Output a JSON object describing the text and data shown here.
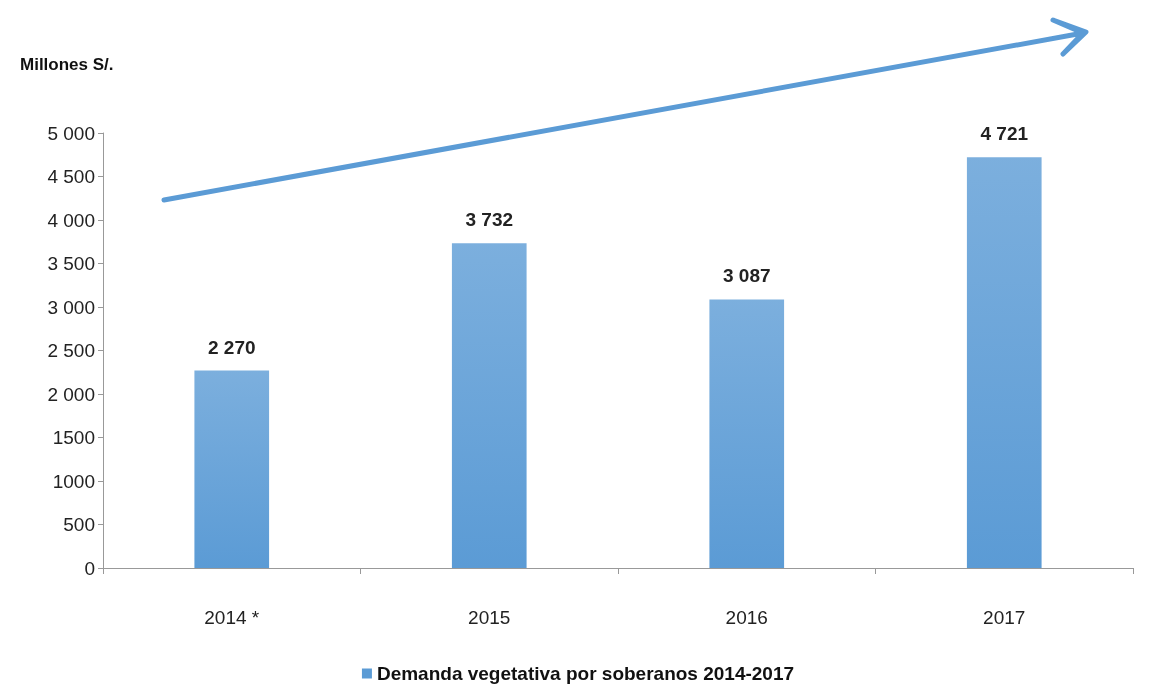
{
  "chart_data": {
    "type": "bar",
    "ylabel": "Millones S/.",
    "categories": [
      "2014 *",
      "2015",
      "2016",
      "2017"
    ],
    "series": [
      {
        "name": "Demanda vegetativa por soberanos 2014-2017",
        "color": "#5b9bd5",
        "values": [
          2270,
          3732,
          3087,
          4721
        ],
        "value_labels": [
          "2 270",
          "3 732",
          "3 087",
          "4 721"
        ]
      }
    ],
    "ylim": [
      0,
      5000
    ],
    "yticks": [
      0,
      500,
      {
        "value": 1000,
        "label": "1000"
      },
      {
        "value": 1500,
        "label": "1500"
      },
      {
        "value": 2000,
        "label": "2 000"
      },
      {
        "value": 2500,
        "label": "2 500"
      },
      {
        "value": 3000,
        "label": "3 000"
      },
      {
        "value": 3500,
        "label": "3 500"
      },
      {
        "value": 4000,
        "label": "4 000"
      },
      {
        "value": 4500,
        "label": "4 500"
      },
      {
        "value": 5000,
        "label": "5 000"
      }
    ],
    "grid": false,
    "legend": "bottom"
  }
}
